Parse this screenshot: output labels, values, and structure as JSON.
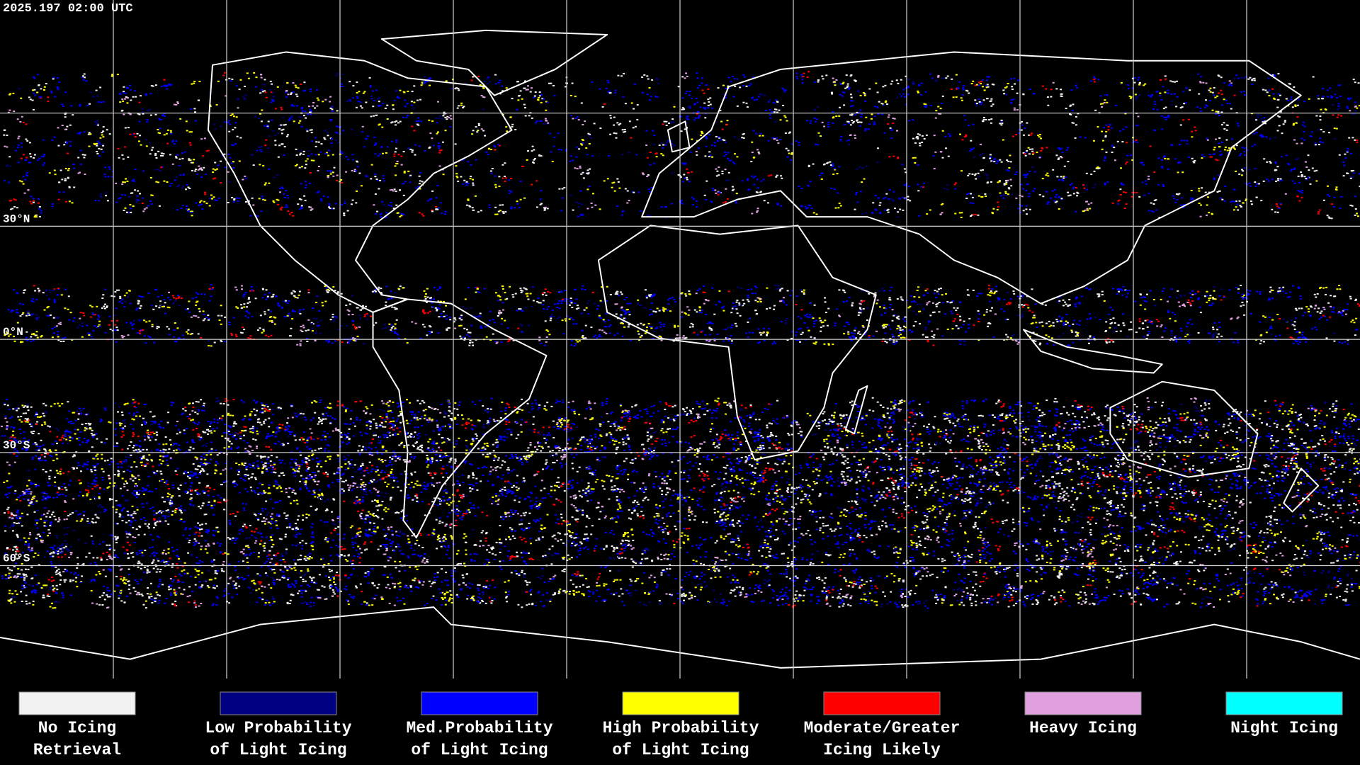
{
  "header": {
    "timestamp": "2025.197 02:00 UTC"
  },
  "map": {
    "latitude_labels": [
      "30°N",
      "0°N",
      "30°S",
      "60°S"
    ]
  },
  "legend": {
    "items": [
      {
        "lines": [
          "No Icing",
          "Retrieval"
        ],
        "color": "#f2f2f2"
      },
      {
        "lines": [
          "Low Probability",
          "of Light Icing"
        ],
        "color": "#000080"
      },
      {
        "lines": [
          "Med.Probability",
          "of Light Icing"
        ],
        "color": "#0000ff"
      },
      {
        "lines": [
          "High Probability",
          "of Light Icing"
        ],
        "color": "#ffff00"
      },
      {
        "lines": [
          "Moderate/Greater",
          "Icing Likely"
        ],
        "color": "#ff0000"
      },
      {
        "lines": [
          "Heavy Icing"
        ],
        "color": "#e0a0e0"
      },
      {
        "lines": [
          "Night Icing"
        ],
        "color": "#00ffff"
      }
    ]
  }
}
